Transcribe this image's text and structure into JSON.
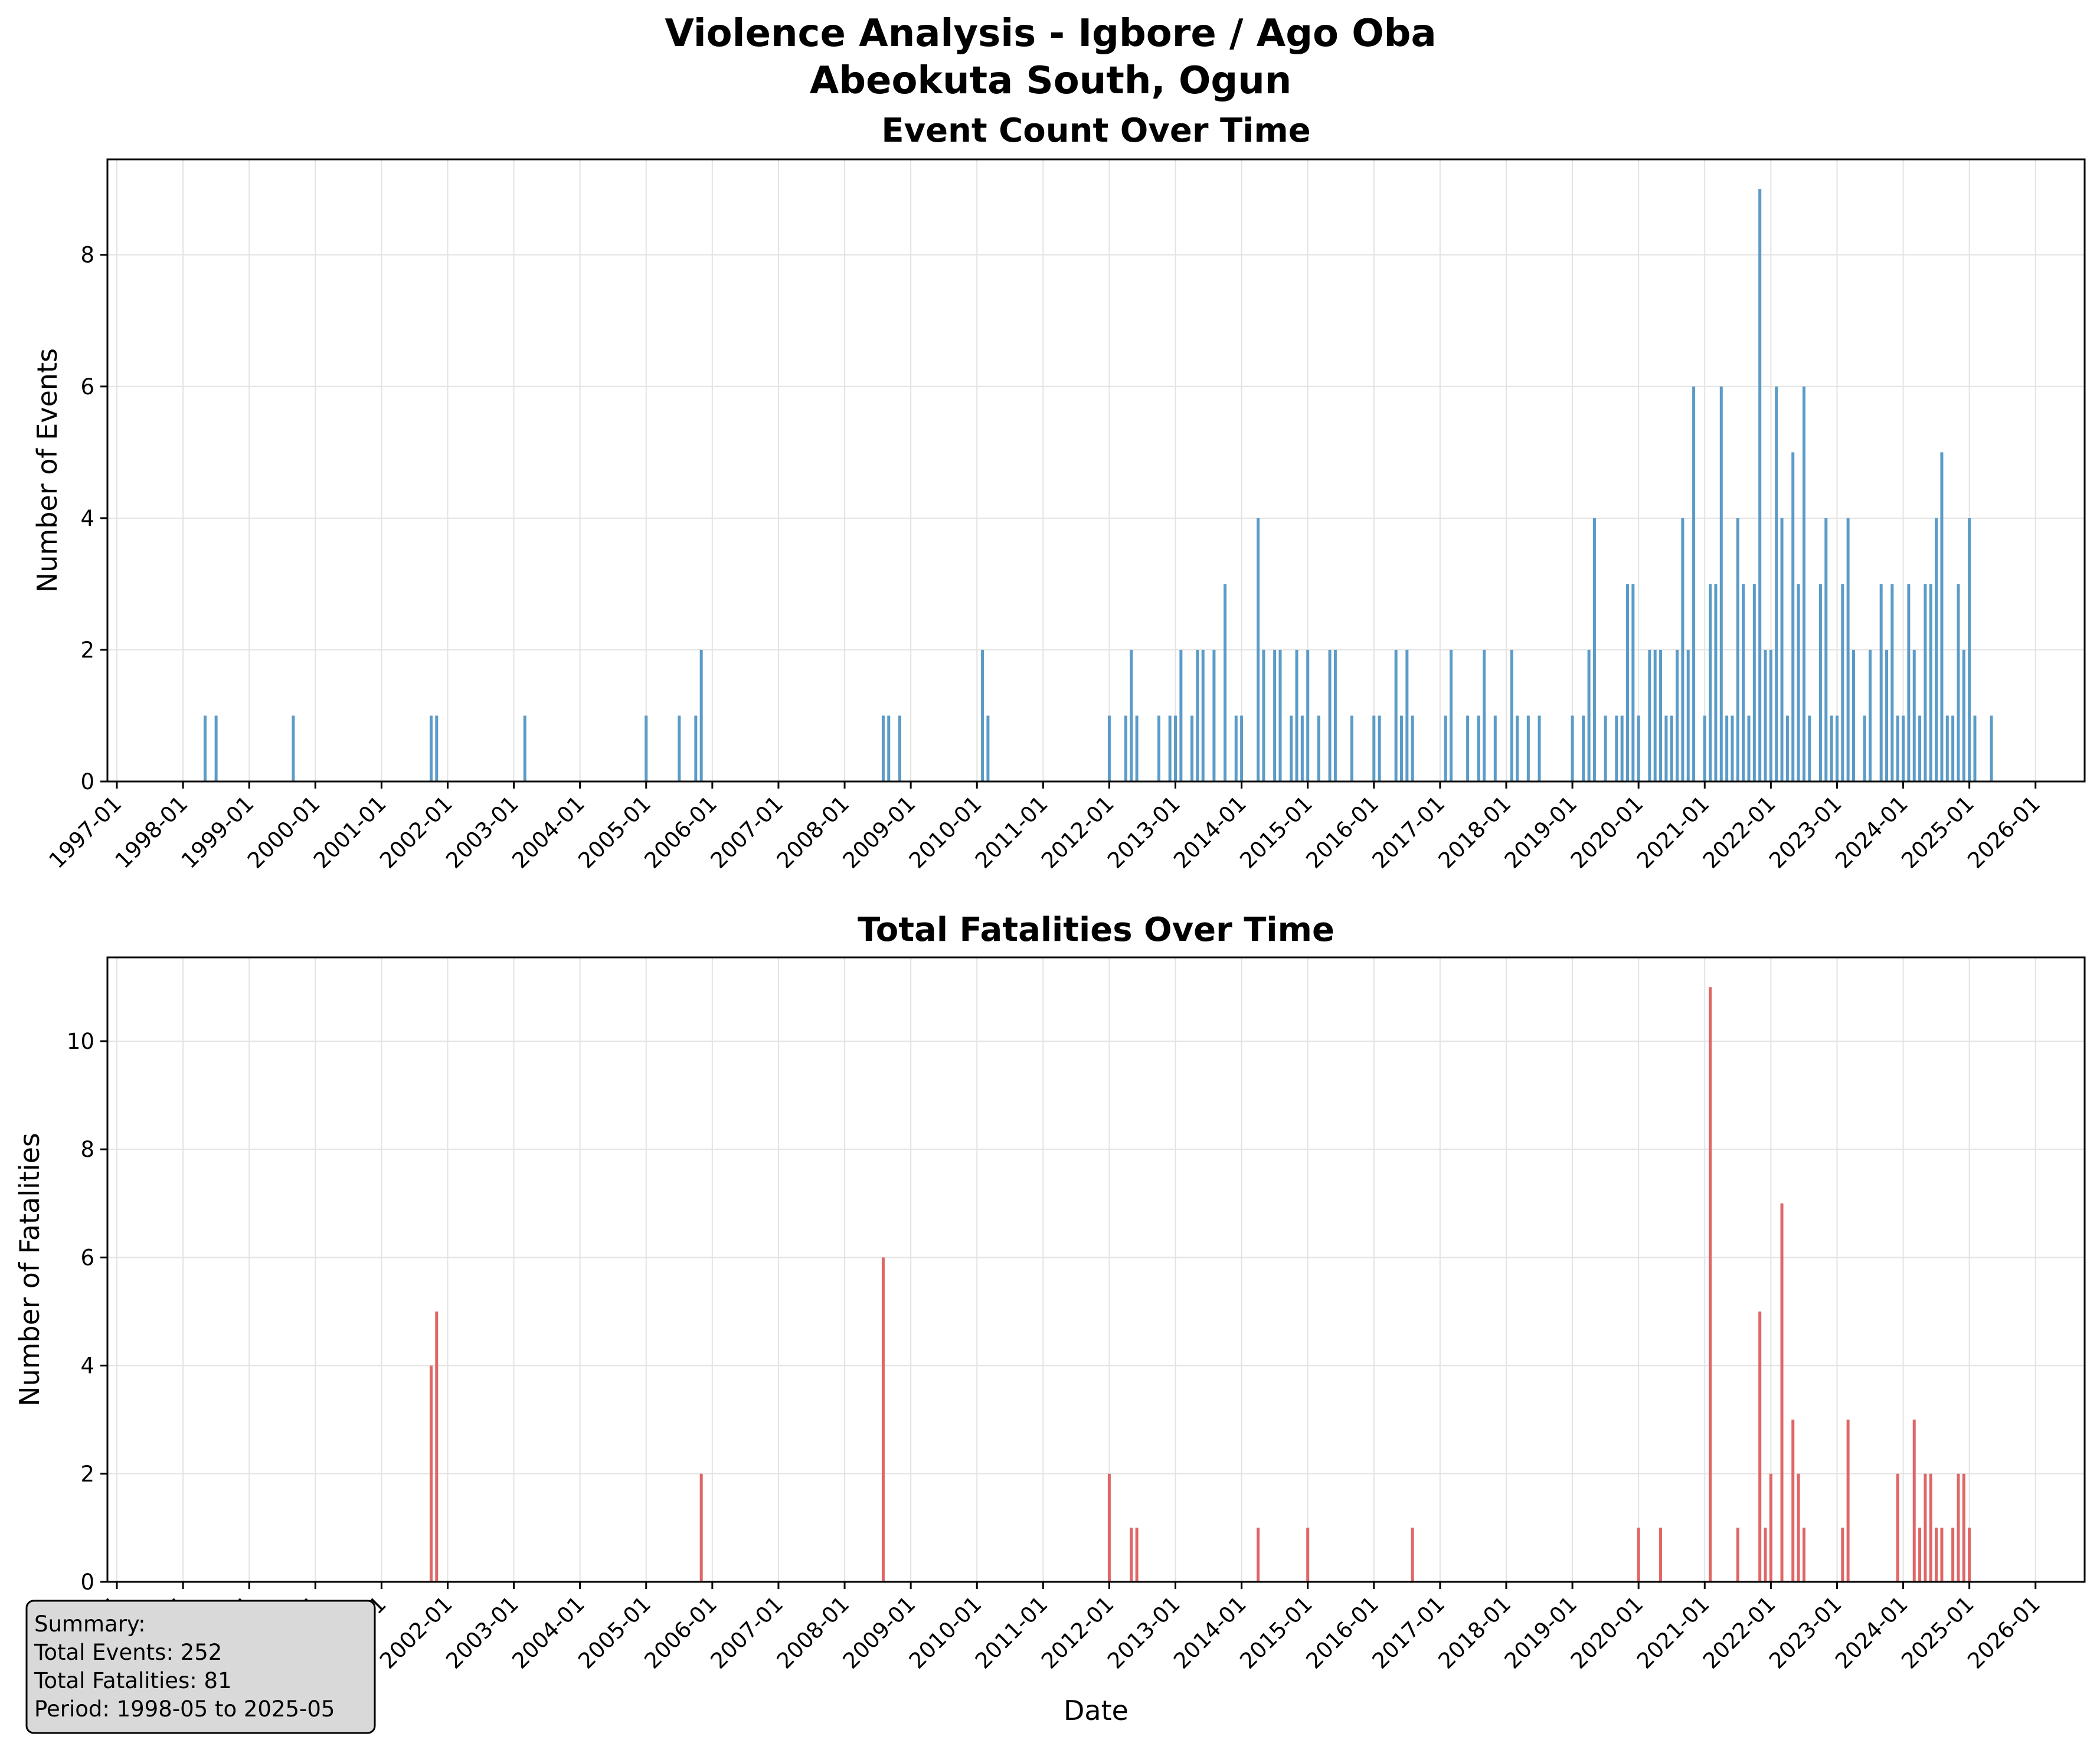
{
  "figure": {
    "title_line1": "Violence Analysis - Igbore / Ago Oba",
    "title_line2": "Abeokuta South, Ogun"
  },
  "colors": {
    "events": "#5b9bc8",
    "fatalities": "#e06666",
    "grid": "#e3e3e3",
    "summary_bg": "#d9d9d9"
  },
  "summary": {
    "heading": "Summary:",
    "total_events": "Total Events: 252",
    "total_fatalities": "Total Fatalities: 81",
    "period": "Period: 1998-05 to 2025-05"
  },
  "chart_data": [
    {
      "type": "bar",
      "title": "Event Count Over Time",
      "xlabel": "",
      "ylabel": "Number of Events",
      "xlim": [
        "1997-01",
        "2026-01"
      ],
      "ylim": [
        0,
        9.45
      ],
      "yticks": [
        0,
        2,
        4,
        6,
        8
      ],
      "grid": true,
      "x_tick_labels": [
        "1997-01",
        "1998-01",
        "1999-01",
        "2000-01",
        "2001-01",
        "2002-01",
        "2003-01",
        "2004-01",
        "2005-01",
        "2006-01",
        "2007-01",
        "2008-01",
        "2009-01",
        "2010-01",
        "2011-01",
        "2012-01",
        "2013-01",
        "2014-01",
        "2015-01",
        "2016-01",
        "2017-01",
        "2018-01",
        "2019-01",
        "2020-01",
        "2021-01",
        "2022-01",
        "2023-01",
        "2024-01",
        "2025-01",
        "2026-01"
      ],
      "x": [
        "1998-05",
        "1998-07",
        "1999-09",
        "2001-10",
        "2001-11",
        "2003-03",
        "2005-01",
        "2005-07",
        "2005-10",
        "2005-11",
        "2008-08",
        "2008-09",
        "2008-11",
        "2010-02",
        "2010-03",
        "2012-01",
        "2012-04",
        "2012-05",
        "2012-06",
        "2012-10",
        "2012-12",
        "2013-01",
        "2013-02",
        "2013-04",
        "2013-05",
        "2013-06",
        "2013-08",
        "2013-10",
        "2013-12",
        "2014-01",
        "2014-04",
        "2014-05",
        "2014-07",
        "2014-08",
        "2014-10",
        "2014-11",
        "2014-12",
        "2015-01",
        "2015-03",
        "2015-05",
        "2015-06",
        "2015-09",
        "2016-01",
        "2016-02",
        "2016-05",
        "2016-06",
        "2016-07",
        "2016-08",
        "2017-02",
        "2017-03",
        "2017-06",
        "2017-08",
        "2017-09",
        "2017-11",
        "2018-02",
        "2018-03",
        "2018-05",
        "2018-07",
        "2019-01",
        "2019-03",
        "2019-04",
        "2019-05",
        "2019-07",
        "2019-09",
        "2019-10",
        "2019-11",
        "2019-12",
        "2020-01",
        "2020-03",
        "2020-04",
        "2020-05",
        "2020-06",
        "2020-07",
        "2020-08",
        "2020-09",
        "2020-10",
        "2020-11",
        "2021-01",
        "2021-02",
        "2021-03",
        "2021-04",
        "2021-05",
        "2021-06",
        "2021-07",
        "2021-08",
        "2021-09",
        "2021-10",
        "2021-11",
        "2021-12",
        "2022-01",
        "2022-02",
        "2022-03",
        "2022-04",
        "2022-05",
        "2022-06",
        "2022-07",
        "2022-08",
        "2022-10",
        "2022-11",
        "2022-12",
        "2023-01",
        "2023-02",
        "2023-03",
        "2023-04",
        "2023-06",
        "2023-07",
        "2023-09",
        "2023-10",
        "2023-11",
        "2023-12",
        "2024-01",
        "2024-02",
        "2024-03",
        "2024-04",
        "2024-05",
        "2024-06",
        "2024-07",
        "2024-08",
        "2024-09",
        "2024-10",
        "2024-11",
        "2024-12",
        "2025-01",
        "2025-02",
        "2025-05"
      ],
      "values": [
        1,
        1,
        1,
        1,
        1,
        1,
        1,
        1,
        1,
        2,
        1,
        1,
        1,
        2,
        1,
        1,
        1,
        2,
        1,
        1,
        1,
        1,
        2,
        1,
        2,
        2,
        2,
        3,
        1,
        1,
        4,
        2,
        2,
        2,
        1,
        2,
        1,
        2,
        1,
        2,
        2,
        1,
        1,
        1,
        2,
        1,
        2,
        1,
        1,
        2,
        1,
        1,
        2,
        1,
        2,
        1,
        1,
        1,
        1,
        1,
        2,
        4,
        1,
        1,
        1,
        3,
        3,
        1,
        2,
        2,
        2,
        1,
        1,
        2,
        4,
        2,
        6,
        1,
        3,
        3,
        6,
        1,
        1,
        4,
        3,
        1,
        3,
        9,
        2,
        2,
        6,
        4,
        1,
        5,
        3,
        6,
        1,
        3,
        4,
        1,
        1,
        3,
        4,
        2,
        1,
        2,
        3,
        2,
        3,
        1,
        1,
        3,
        2,
        1,
        3,
        3,
        4,
        5,
        1,
        1,
        3,
        2,
        4,
        1,
        1
      ]
    },
    {
      "type": "bar",
      "title": "Total Fatalities Over Time",
      "xlabel": "Date",
      "ylabel": "Number of Fatalities",
      "xlim": [
        "1997-01",
        "2026-01"
      ],
      "ylim": [
        0,
        11.55
      ],
      "yticks": [
        0,
        2,
        4,
        6,
        8,
        10
      ],
      "grid": true,
      "x_tick_labels": [
        "1997-01",
        "1998-01",
        "1999-01",
        "2000-01",
        "2001-01",
        "2002-01",
        "2003-01",
        "2004-01",
        "2005-01",
        "2006-01",
        "2007-01",
        "2008-01",
        "2009-01",
        "2010-01",
        "2011-01",
        "2012-01",
        "2013-01",
        "2014-01",
        "2015-01",
        "2016-01",
        "2017-01",
        "2018-01",
        "2019-01",
        "2020-01",
        "2021-01",
        "2022-01",
        "2023-01",
        "2024-01",
        "2025-01",
        "2026-01"
      ],
      "x": [
        "2001-10",
        "2001-11",
        "2005-11",
        "2008-08",
        "2012-01",
        "2012-05",
        "2012-06",
        "2014-04",
        "2015-01",
        "2016-08",
        "2020-01",
        "2020-05",
        "2021-02",
        "2021-07",
        "2021-11",
        "2021-12",
        "2022-01",
        "2022-03",
        "2022-05",
        "2022-06",
        "2022-07",
        "2023-02",
        "2023-03",
        "2023-12",
        "2024-03",
        "2024-04",
        "2024-05",
        "2024-06",
        "2024-07",
        "2024-08",
        "2024-10",
        "2024-11",
        "2024-12",
        "2025-01"
      ],
      "values": [
        4,
        5,
        2,
        6,
        2,
        1,
        1,
        1,
        1,
        1,
        1,
        1,
        11,
        1,
        5,
        1,
        2,
        7,
        3,
        2,
        1,
        1,
        3,
        2,
        3,
        1,
        2,
        2,
        1,
        1,
        1,
        2,
        2,
        1
      ]
    }
  ]
}
